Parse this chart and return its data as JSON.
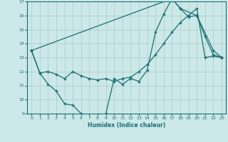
{
  "title": "",
  "xlabel": "Humidex (Indice chaleur)",
  "xlim": [
    -0.5,
    23.5
  ],
  "ylim": [
    9,
    17
  ],
  "yticks": [
    9,
    10,
    11,
    12,
    13,
    14,
    15,
    16,
    17
  ],
  "xticks": [
    0,
    1,
    2,
    3,
    4,
    5,
    6,
    7,
    8,
    9,
    10,
    11,
    12,
    13,
    14,
    15,
    16,
    17,
    18,
    19,
    20,
    21,
    22,
    23
  ],
  "bg_color": "#cce8e8",
  "grid_color": "#aacccc",
  "line_color": "#1a7070",
  "line1_x": [
    0,
    1,
    2,
    3,
    4,
    5,
    6,
    7,
    8,
    9,
    10,
    11,
    12,
    13,
    14,
    15,
    16,
    17,
    18,
    19,
    20,
    21,
    22,
    23
  ],
  "line1_y": [
    13.5,
    11.9,
    11.1,
    10.6,
    9.7,
    9.6,
    9.0,
    8.8,
    8.7,
    9.0,
    11.5,
    11.1,
    11.5,
    11.3,
    12.1,
    14.8,
    16.1,
    17.2,
    16.5,
    15.9,
    16.0,
    14.5,
    13.2,
    13.0
  ],
  "line2_x": [
    0,
    1,
    2,
    3,
    4,
    5,
    6,
    7,
    8,
    9,
    10,
    11,
    12,
    13,
    14,
    15,
    16,
    17,
    18,
    19,
    20,
    21,
    22,
    23
  ],
  "line2_y": [
    13.5,
    11.9,
    12.0,
    11.8,
    11.5,
    12.0,
    11.7,
    11.5,
    11.4,
    11.5,
    11.3,
    11.5,
    11.6,
    12.0,
    12.5,
    13.2,
    14.0,
    14.8,
    15.5,
    16.0,
    16.5,
    13.0,
    13.1,
    13.0
  ],
  "line3_x": [
    0,
    17,
    18,
    20,
    22,
    23
  ],
  "line3_y": [
    13.5,
    17.2,
    16.5,
    16.0,
    13.5,
    13.0
  ]
}
